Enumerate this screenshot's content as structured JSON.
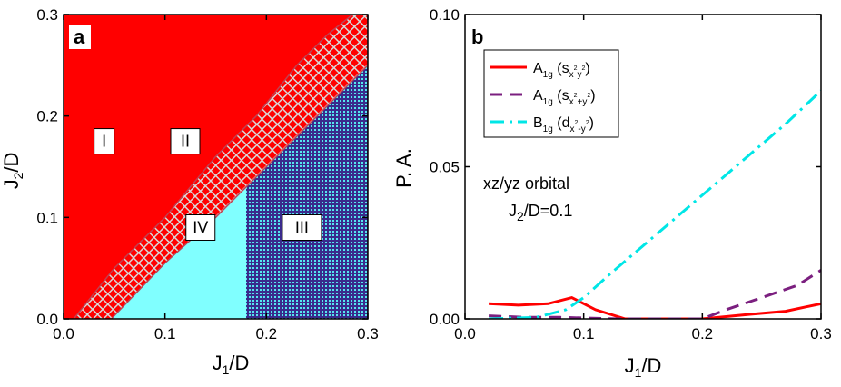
{
  "chart_data": [
    {
      "type": "area",
      "panel_letter": "a",
      "title": "",
      "xlabel": {
        "main": "J",
        "sub": "1",
        "tail": "/D"
      },
      "ylabel": {
        "main": "J",
        "sub": "2",
        "tail": "/D"
      },
      "xlim": [
        0.0,
        0.3
      ],
      "ylim": [
        0.0,
        0.3
      ],
      "x_ticks": [
        "0.0",
        "0.1",
        "0.2",
        "0.3"
      ],
      "y_ticks": [
        "0.0",
        "0.1",
        "0.2",
        "0.3"
      ],
      "colors": {
        "I": "#ff0000",
        "II_bg": "#ff0000",
        "II_hatch": "#d8d8d8",
        "III_bg": "#55e6ee",
        "III_hatch": "#3a2a8c",
        "IV": "#80ffff",
        "border": "#c04050"
      },
      "boundaries": {
        "I_II": [
          [
            0.01,
            0.0
          ],
          [
            0.05,
            0.05
          ],
          [
            0.1,
            0.1
          ],
          [
            0.15,
            0.16
          ],
          [
            0.19,
            0.2
          ],
          [
            0.23,
            0.25
          ],
          [
            0.26,
            0.28
          ],
          [
            0.285,
            0.3
          ]
        ],
        "II_IV_III": [
          [
            0.047,
            0.0
          ],
          [
            0.1,
            0.055
          ],
          [
            0.15,
            0.1
          ],
          [
            0.2,
            0.15
          ],
          [
            0.25,
            0.2
          ],
          [
            0.3,
            0.25
          ],
          [
            0.3,
            0.3
          ]
        ],
        "IV_III_x": 0.18
      },
      "regions": [
        {
          "name": "I",
          "label": "I",
          "x": 0.04,
          "y": 0.175
        },
        {
          "name": "II",
          "label": "II",
          "x": 0.12,
          "y": 0.175
        },
        {
          "name": "IV",
          "label": "IV",
          "x": 0.135,
          "y": 0.09
        },
        {
          "name": "III",
          "label": "III",
          "x": 0.235,
          "y": 0.09
        }
      ]
    },
    {
      "type": "line",
      "panel_letter": "b",
      "title": "",
      "xlabel": {
        "main": "J",
        "sub": "1",
        "tail": "/D"
      },
      "ylabel": "P. A.",
      "xlim": [
        0.0,
        0.3
      ],
      "ylim": [
        0.0,
        0.1
      ],
      "x_ticks": [
        "0.0",
        "0.1",
        "0.2",
        "0.3"
      ],
      "y_ticks": [
        "0.00",
        "0.05",
        "0.10"
      ],
      "legend_position": "top-left",
      "annotation": {
        "line1": "xz/yz orbital",
        "line2_main": "J",
        "line2_sub": "2",
        "line2_tail": "/D=0.1",
        "x": 0.2,
        "y": 0.045
      },
      "series": [
        {
          "name": "A1g (sx2y2)",
          "legend": {
            "main": "A",
            "sub": "1g",
            "paren": "(s",
            "psub": "x",
            "psup1": "2",
            "psub2": "y",
            "psup2": "2",
            "close": ")"
          },
          "color": "#ff0000",
          "style": "solid",
          "x": [
            0.02,
            0.045,
            0.07,
            0.09,
            0.11,
            0.135,
            0.16,
            0.2,
            0.24,
            0.27,
            0.3
          ],
          "y": [
            0.005,
            0.0045,
            0.005,
            0.007,
            0.003,
            0.0,
            0.0,
            0.0,
            0.0015,
            0.0025,
            0.005
          ]
        },
        {
          "name": "A1g (sx2+y2)",
          "legend": {
            "main": "A",
            "sub": "1g",
            "paren": "(s",
            "psub": "x",
            "psup1": "2",
            "psub2": "+y",
            "psup2": "2",
            "close": ")"
          },
          "color": "#7b1f7f",
          "style": "dashed",
          "x": [
            0.02,
            0.05,
            0.08,
            0.1,
            0.13,
            0.16,
            0.2,
            0.22,
            0.25,
            0.28,
            0.3
          ],
          "y": [
            0.001,
            0.0005,
            0.0005,
            0.0003,
            0.0,
            0.0,
            0.0,
            0.003,
            0.007,
            0.011,
            0.016
          ]
        },
        {
          "name": "B1g (dx2-y2)",
          "legend": {
            "main": "B",
            "sub": "1g",
            "paren": "(d",
            "psub": "x",
            "psup1": "2",
            "psub2": "-y",
            "psup2": "2",
            "close": ")"
          },
          "color": "#00e6e6",
          "style": "dashdot",
          "x": [
            0.02,
            0.06,
            0.085,
            0.1,
            0.12,
            0.15,
            0.18,
            0.21,
            0.24,
            0.27,
            0.3
          ],
          "y": [
            0.0,
            0.0005,
            0.003,
            0.007,
            0.014,
            0.024,
            0.034,
            0.044,
            0.054,
            0.064,
            0.075
          ]
        }
      ]
    }
  ]
}
